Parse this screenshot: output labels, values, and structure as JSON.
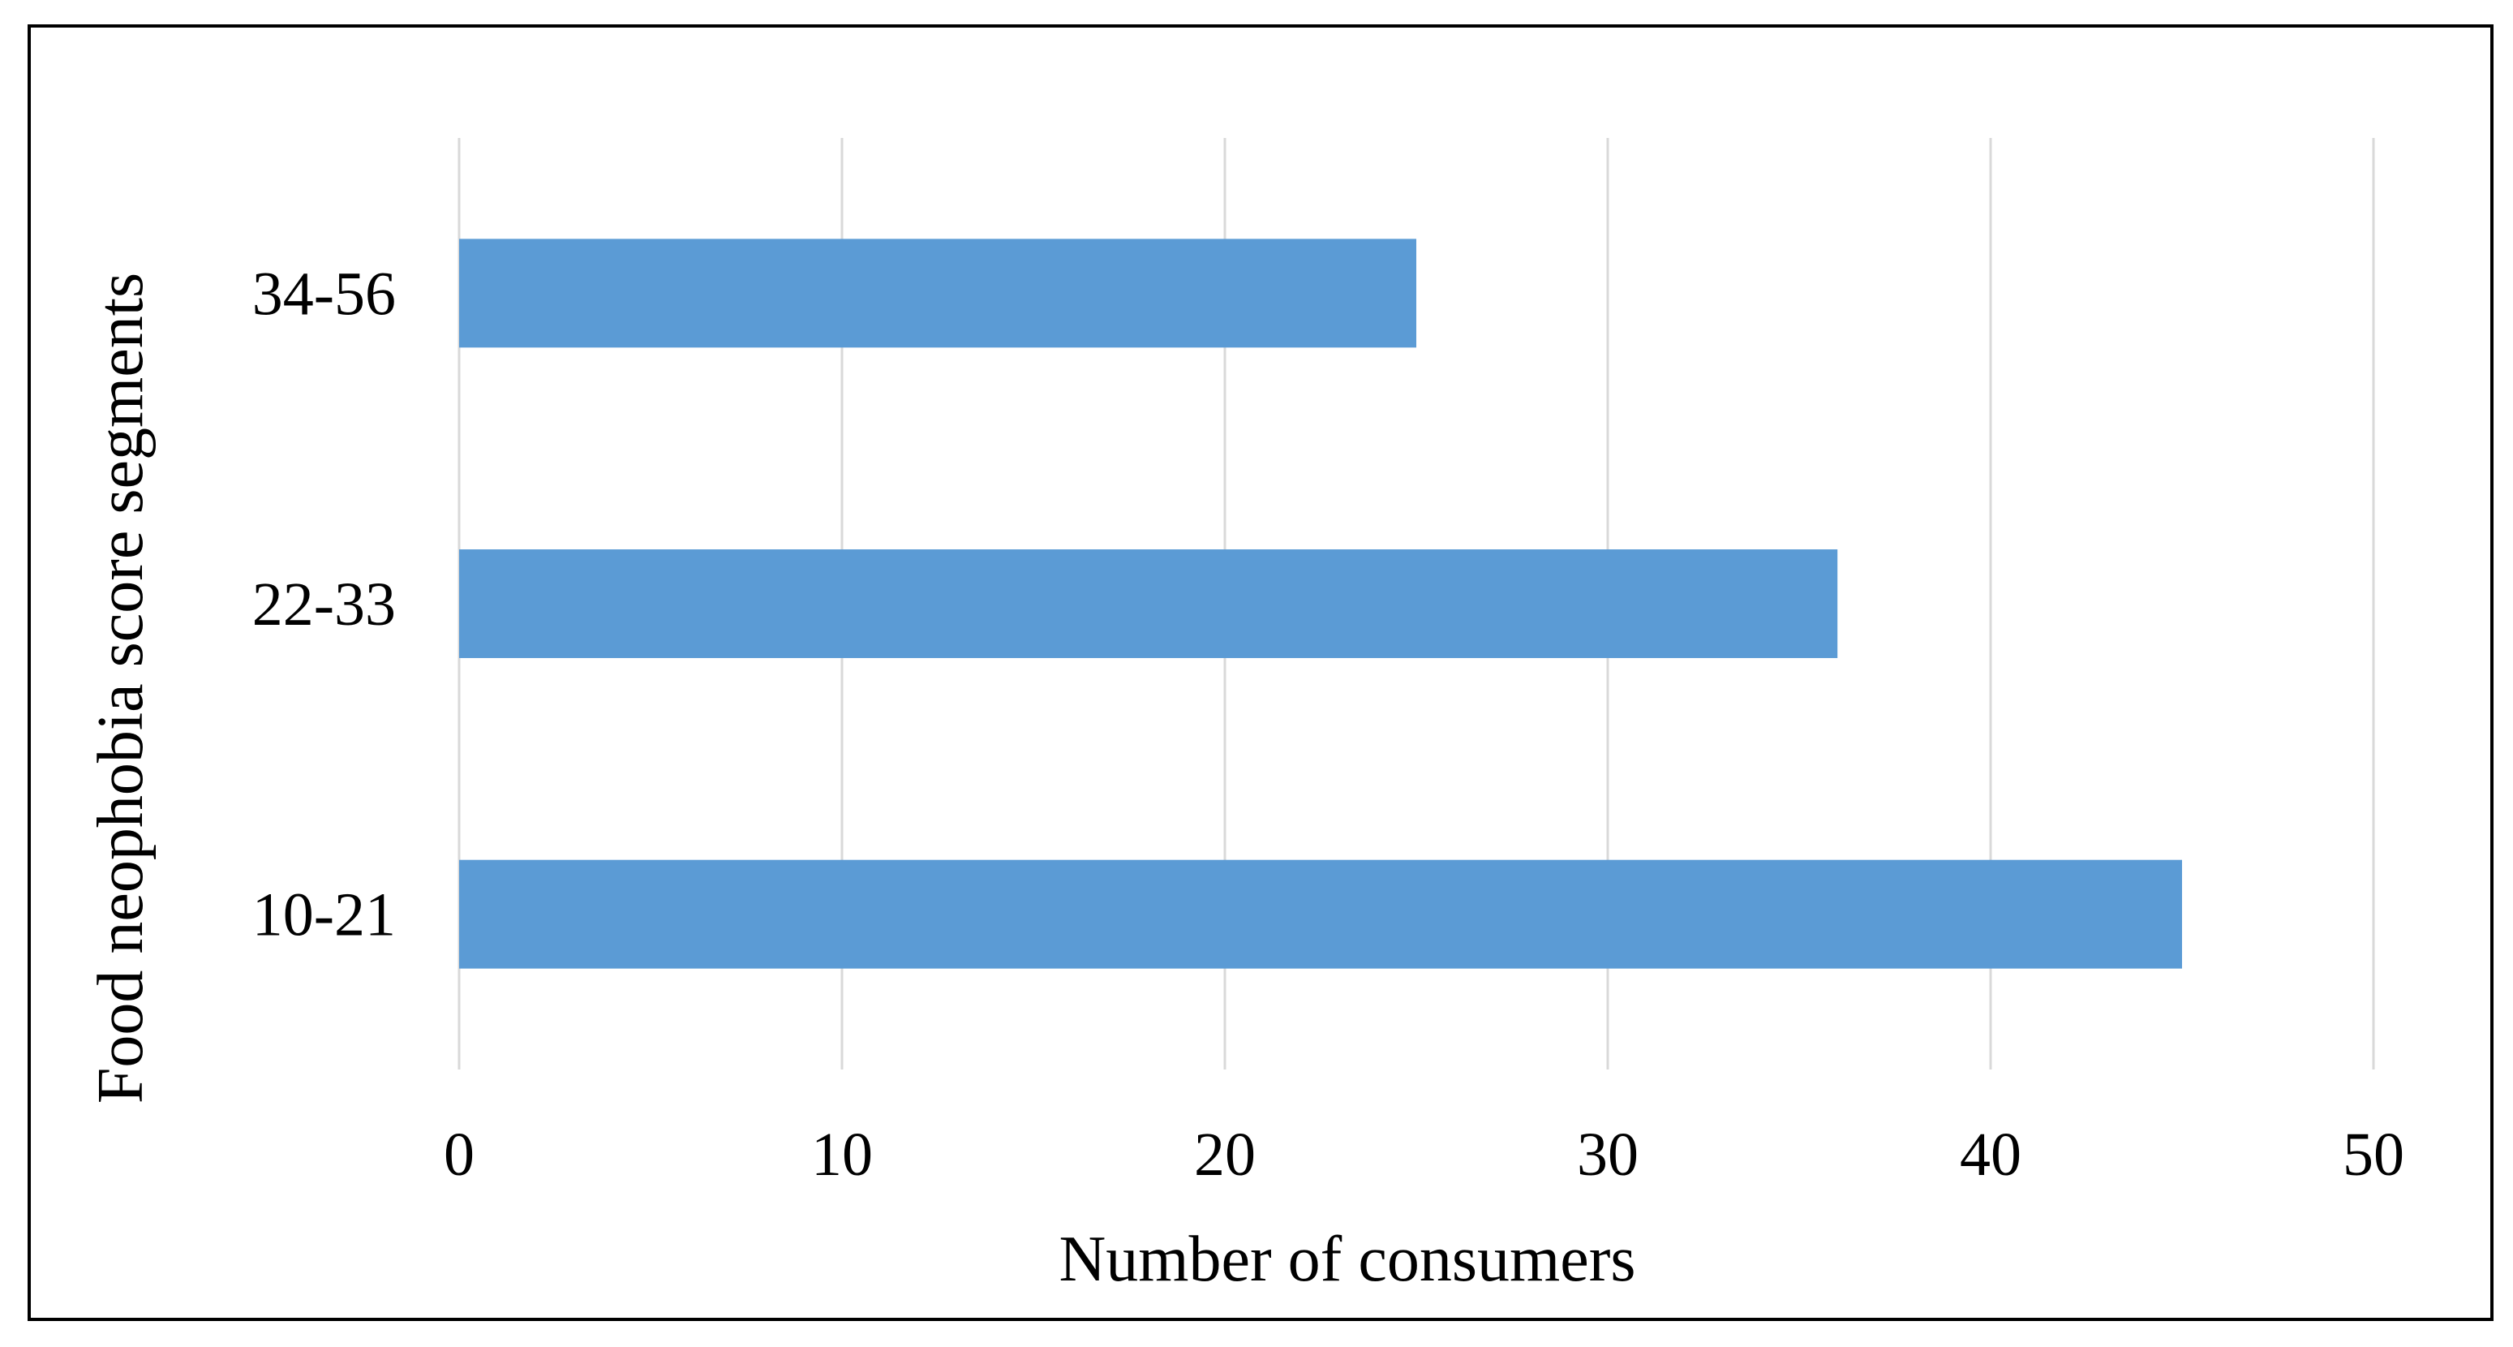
{
  "chart_data": {
    "type": "bar",
    "orientation": "horizontal",
    "categories": [
      "10-21",
      "22-33",
      "34-56"
    ],
    "values": [
      45,
      36,
      25
    ],
    "xlabel": "Number of consumers",
    "ylabel": "Food neophobia score segments",
    "xlim": [
      0,
      50
    ],
    "xticks": [
      "0",
      "10",
      "20",
      "30",
      "40",
      "50"
    ],
    "grid": "vertical",
    "bar_color": "#5b9bd5",
    "gridline_color": "#d9d9d9"
  }
}
